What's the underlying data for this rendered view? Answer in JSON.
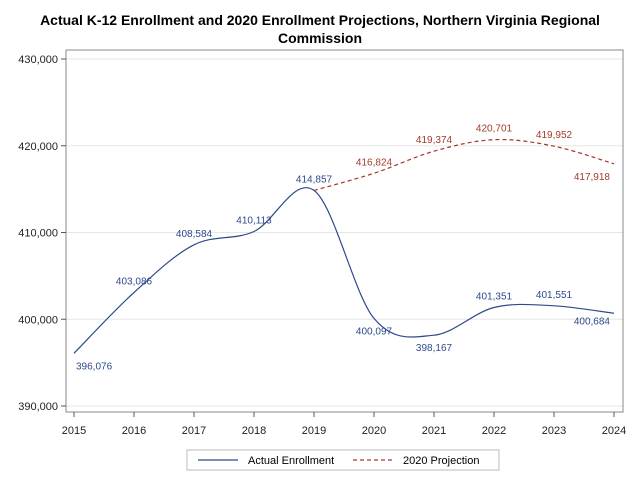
{
  "chart_data": {
    "type": "line",
    "title": "Actual K-12 Enrollment and 2020 Enrollment Projections, Northern Virginia Regional Commission",
    "title_lines": [
      "Actual K-12 Enrollment and 2020 Enrollment Projections, Northern Virginia Regional",
      "Commission"
    ],
    "xlim": [
      2015,
      2024
    ],
    "ylim": [
      390000,
      430000
    ],
    "x_ticks": [
      2015,
      2016,
      2017,
      2018,
      2019,
      2020,
      2021,
      2022,
      2023,
      2024
    ],
    "y_ticks": [
      390000,
      400000,
      410000,
      420000,
      430000
    ],
    "y_tick_labels": [
      "390,000",
      "400,000",
      "410,000",
      "420,000",
      "430,000"
    ],
    "legend_position": "bottom",
    "grid": "horizontal",
    "series": [
      {
        "name": "Actual Enrollment",
        "style": "solid",
        "color": "#2e4a8c",
        "points": [
          {
            "x": 2015,
            "y": 396076,
            "label": "396,076",
            "label_pos": "below"
          },
          {
            "x": 2016,
            "y": 403086,
            "label": "403,086",
            "label_pos": "above"
          },
          {
            "x": 2017,
            "y": 408584,
            "label": "408,584",
            "label_pos": "above"
          },
          {
            "x": 2018,
            "y": 410113,
            "label": "410,113",
            "label_pos": "above"
          },
          {
            "x": 2019,
            "y": 414857,
            "label": "414,857",
            "label_pos": "above"
          },
          {
            "x": 2020,
            "y": 400097,
            "label": "400,097",
            "label_pos": "below"
          },
          {
            "x": 2021,
            "y": 398167,
            "label": "398,167",
            "label_pos": "below"
          },
          {
            "x": 2022,
            "y": 401351,
            "label": "401,351",
            "label_pos": "above"
          },
          {
            "x": 2023,
            "y": 401551,
            "label": "401,551",
            "label_pos": "above"
          },
          {
            "x": 2024,
            "y": 400684,
            "label": "400,684",
            "label_pos": "left"
          }
        ]
      },
      {
        "name": "2020 Projection",
        "style": "dashed",
        "color": "#a23b2a",
        "points": [
          {
            "x": 2019,
            "y": 414857,
            "label": "",
            "label_pos": "none"
          },
          {
            "x": 2020,
            "y": 416824,
            "label": "416,824",
            "label_pos": "above"
          },
          {
            "x": 2021,
            "y": 419374,
            "label": "419,374",
            "label_pos": "above"
          },
          {
            "x": 2022,
            "y": 420701,
            "label": "420,701",
            "label_pos": "above"
          },
          {
            "x": 2023,
            "y": 419952,
            "label": "419,952",
            "label_pos": "above"
          },
          {
            "x": 2024,
            "y": 417918,
            "label": "417,918",
            "label_pos": "left"
          }
        ]
      }
    ]
  }
}
